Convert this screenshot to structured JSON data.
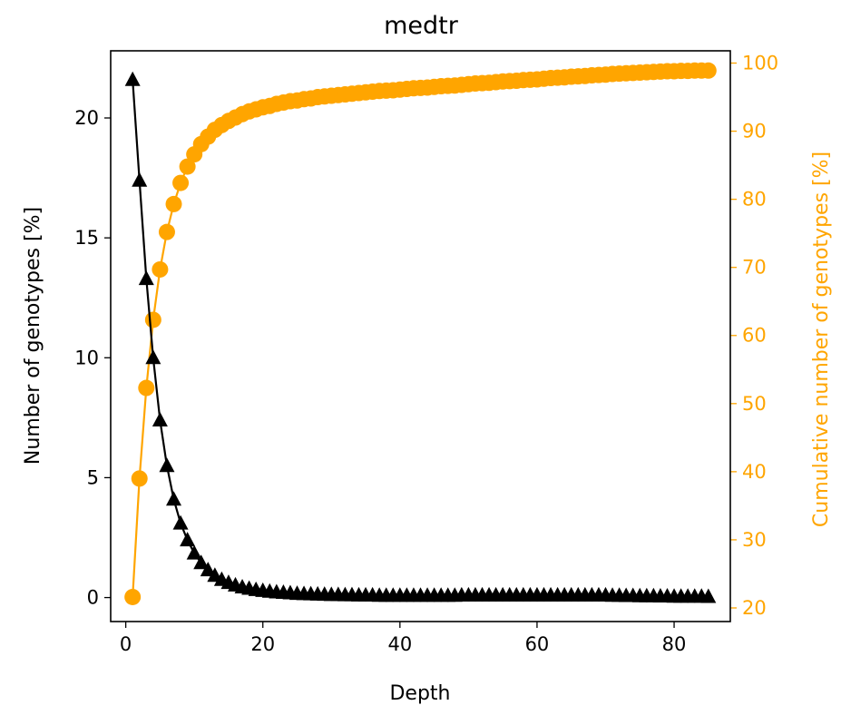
{
  "chart_data": {
    "type": "line",
    "title": "medtr",
    "xlabel": "Depth",
    "ylabel_left": "Number of genotypes [%]",
    "ylabel_right": "Cumulative number of genotypes [%]",
    "xlim": [
      -2.2,
      88.2
    ],
    "ylim_left": [
      -1.0,
      22.8
    ],
    "ylim_right": [
      18.0,
      101.8
    ],
    "xticks": [
      0,
      20,
      40,
      60,
      80
    ],
    "yticks_left": [
      0,
      5,
      10,
      15,
      20
    ],
    "yticks_right": [
      20,
      30,
      40,
      50,
      60,
      70,
      80,
      90,
      100
    ],
    "grid": false,
    "legend": "none",
    "series": [
      {
        "axis": "left",
        "marker": "triangle",
        "color": "#000000",
        "x": [
          1,
          2,
          3,
          4,
          5,
          6,
          7,
          8,
          9,
          10,
          11,
          12,
          13,
          14,
          15,
          16,
          17,
          18,
          19,
          20,
          21,
          22,
          23,
          24,
          25,
          26,
          27,
          28,
          29,
          30,
          31,
          32,
          33,
          34,
          35,
          36,
          37,
          38,
          39,
          40,
          41,
          42,
          43,
          44,
          45,
          46,
          47,
          48,
          49,
          50,
          51,
          52,
          53,
          54,
          55,
          56,
          57,
          58,
          59,
          60,
          61,
          62,
          63,
          64,
          65,
          66,
          67,
          68,
          69,
          70,
          71,
          72,
          73,
          74,
          75,
          76,
          77,
          78,
          79,
          80,
          81,
          82,
          83,
          84,
          85
        ],
        "y": [
          21.6,
          17.4,
          13.3,
          10.0,
          7.4,
          5.5,
          4.1,
          3.1,
          2.4,
          1.85,
          1.45,
          1.15,
          0.92,
          0.75,
          0.62,
          0.52,
          0.44,
          0.38,
          0.33,
          0.29,
          0.26,
          0.23,
          0.21,
          0.19,
          0.17,
          0.16,
          0.15,
          0.14,
          0.13,
          0.12,
          0.12,
          0.11,
          0.11,
          0.1,
          0.1,
          0.1,
          0.09,
          0.09,
          0.09,
          0.09,
          0.09,
          0.09,
          0.09,
          0.09,
          0.09,
          0.09,
          0.09,
          0.09,
          0.1,
          0.1,
          0.1,
          0.1,
          0.1,
          0.1,
          0.1,
          0.1,
          0.1,
          0.1,
          0.1,
          0.1,
          0.1,
          0.1,
          0.1,
          0.1,
          0.1,
          0.1,
          0.1,
          0.1,
          0.1,
          0.1,
          0.09,
          0.09,
          0.08,
          0.08,
          0.07,
          0.07,
          0.07,
          0.06,
          0.06,
          0.05,
          0.05,
          0.05,
          0.05,
          0.05,
          0.04
        ]
      },
      {
        "axis": "right",
        "marker": "circle",
        "color": "#ffa500",
        "x": [
          1,
          2,
          3,
          4,
          5,
          6,
          7,
          8,
          9,
          10,
          11,
          12,
          13,
          14,
          15,
          16,
          17,
          18,
          19,
          20,
          21,
          22,
          23,
          24,
          25,
          26,
          27,
          28,
          29,
          30,
          31,
          32,
          33,
          34,
          35,
          36,
          37,
          38,
          39,
          40,
          41,
          42,
          43,
          44,
          45,
          46,
          47,
          48,
          49,
          50,
          51,
          52,
          53,
          54,
          55,
          56,
          57,
          58,
          59,
          60,
          61,
          62,
          63,
          64,
          65,
          66,
          67,
          68,
          69,
          70,
          71,
          72,
          73,
          74,
          75,
          76,
          77,
          78,
          79,
          80,
          81,
          82,
          83,
          84,
          85
        ],
        "y": [
          21.6,
          39.0,
          52.3,
          62.3,
          69.7,
          75.2,
          79.3,
          82.4,
          84.8,
          86.6,
          88.1,
          89.2,
          90.2,
          90.9,
          91.5,
          92.0,
          92.5,
          92.9,
          93.2,
          93.5,
          93.7,
          94.0,
          94.2,
          94.4,
          94.5,
          94.7,
          94.8,
          95.0,
          95.1,
          95.2,
          95.3,
          95.4,
          95.5,
          95.6,
          95.7,
          95.8,
          95.9,
          95.95,
          96.0,
          96.1,
          96.2,
          96.3,
          96.35,
          96.4,
          96.5,
          96.6,
          96.65,
          96.7,
          96.8,
          96.9,
          97.0,
          97.05,
          97.1,
          97.2,
          97.3,
          97.35,
          97.4,
          97.5,
          97.55,
          97.6,
          97.7,
          97.8,
          97.85,
          97.9,
          98.0,
          98.05,
          98.1,
          98.2,
          98.25,
          98.3,
          98.4,
          98.45,
          98.5,
          98.55,
          98.6,
          98.65,
          98.7,
          98.75,
          98.8,
          98.8,
          98.85,
          98.85,
          98.9,
          98.9,
          98.9
        ]
      }
    ]
  }
}
